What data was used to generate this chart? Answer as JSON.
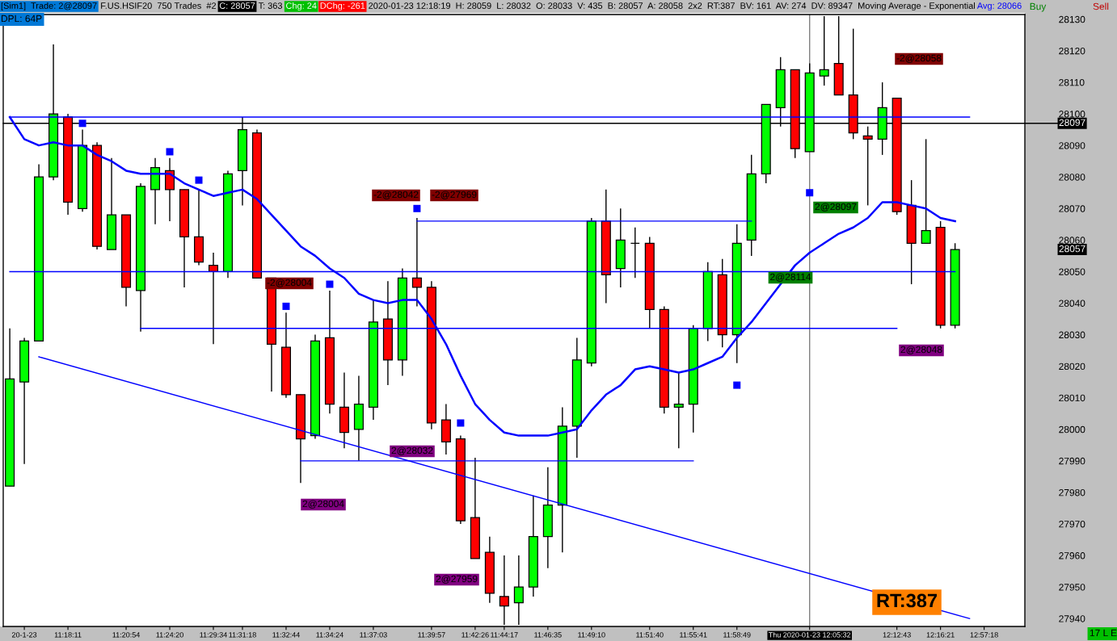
{
  "chart_data": {
    "type": "candlestick",
    "categories": [
      null,
      "20-1-23",
      null,
      null,
      "11:18:11",
      null,
      null,
      null,
      "11:20:54",
      null,
      null,
      "11:24:20",
      null,
      null,
      "11:29:34",
      null,
      "11:31:18",
      null,
      null,
      "11:32:44",
      null,
      null,
      "11:34:24",
      null,
      null,
      "11:37:03",
      null,
      null,
      null,
      "11:39:57",
      null,
      null,
      "11:42:26",
      null,
      "11:44:17",
      null,
      null,
      "11:46:35",
      null,
      null,
      "11:49:10",
      null,
      null,
      null,
      "11:51:40",
      null,
      null,
      "11:55:41",
      null,
      null,
      "11:58:49",
      null,
      null,
      null,
      null,
      "Thu 2020-01-23 12:05:32",
      null,
      null,
      null,
      null,
      null,
      "12:12:43",
      null,
      null,
      "12:16:21",
      null,
      null,
      "12:57:18",
      null,
      null
    ],
    "ohlc": [
      [
        27982,
        28032,
        27982,
        28016
      ],
      [
        28015,
        28029,
        27989,
        28028
      ],
      [
        28028,
        28084,
        28028,
        28080
      ],
      [
        28080,
        28122,
        28079,
        28100
      ],
      [
        28099,
        28100,
        28068,
        28072
      ],
      [
        28070,
        28095,
        28069,
        28090
      ],
      [
        28090,
        28091,
        28057,
        28058
      ],
      [
        28057,
        28086,
        28057,
        28068
      ],
      [
        28068,
        28068,
        28039,
        28045
      ],
      [
        28044,
        28078,
        28031,
        28077
      ],
      [
        28076,
        28086,
        28065,
        28083
      ],
      [
        28082,
        28086,
        28066,
        28076
      ],
      [
        28076,
        28076,
        28045,
        28061
      ],
      [
        28061,
        28076,
        28052,
        28053
      ],
      [
        28052,
        28056,
        28027,
        28050
      ],
      [
        28050,
        28082,
        28048,
        28081
      ],
      [
        28082,
        28099,
        28071,
        28095
      ],
      [
        28094,
        28095,
        28048,
        28048
      ],
      [
        28048,
        28048,
        28012,
        28027
      ],
      [
        28026,
        28037,
        28010,
        28011
      ],
      [
        28011,
        28011,
        27983,
        27997
      ],
      [
        27998,
        28030,
        27997,
        28028
      ],
      [
        28029,
        28044,
        28005,
        28008
      ],
      [
        28007,
        28018,
        27994,
        27999
      ],
      [
        28000,
        28017,
        27990,
        28008
      ],
      [
        28007,
        28041,
        28003,
        28034
      ],
      [
        28035,
        28047,
        28014,
        28022
      ],
      [
        28022,
        28051,
        28017,
        28048
      ],
      [
        28048,
        28067,
        28039,
        28045
      ],
      [
        28045,
        28047,
        28000,
        28002
      ],
      [
        28003,
        28008,
        27992,
        27996
      ],
      [
        27997,
        27998,
        27970,
        27971
      ],
      [
        27972,
        27991,
        27959,
        27959
      ],
      [
        27961,
        27966,
        27945,
        27948
      ],
      [
        27947,
        27960,
        27938,
        27944
      ],
      [
        27945,
        27960,
        27938,
        27950
      ],
      [
        27950,
        27979,
        27947,
        27966
      ],
      [
        27966,
        27988,
        27956,
        27976
      ],
      [
        27976,
        28007,
        27961,
        28001
      ],
      [
        28001,
        28029,
        27991,
        28022
      ],
      [
        28021,
        28067,
        28020,
        28066
      ],
      [
        28066,
        28076,
        28040,
        28049
      ],
      [
        28051,
        28070,
        28045,
        28060
      ],
      [
        28059,
        28064,
        28048,
        28059
      ],
      [
        28059,
        28061,
        28032,
        28038
      ],
      [
        28038,
        28039,
        28005,
        28007
      ],
      [
        28007,
        28018,
        27994,
        28008
      ],
      [
        28008,
        28033,
        27999,
        28032
      ],
      [
        28032,
        28053,
        28028,
        28050
      ],
      [
        28049,
        28054,
        28026,
        28030
      ],
      [
        28030,
        28065,
        28021,
        28059
      ],
      [
        28060,
        28087,
        28055,
        28081
      ],
      [
        28081,
        28103,
        28078,
        28103
      ],
      [
        28102,
        28118,
        28096,
        28114
      ],
      [
        28114,
        28114,
        28086,
        28089
      ],
      [
        28088,
        28116,
        28088,
        28113
      ],
      [
        28112,
        28131,
        28109,
        28114
      ],
      [
        28116,
        28131,
        28106,
        28106
      ],
      [
        28106,
        28127,
        28092,
        28094
      ],
      [
        28093,
        28096,
        28071,
        28092
      ],
      [
        28092,
        28110,
        28087,
        28102
      ],
      [
        28105,
        28105,
        28068,
        28069
      ],
      [
        28071,
        28079,
        28046,
        28059
      ],
      [
        28059,
        28092,
        28059,
        28063
      ],
      [
        28064,
        28066,
        28032,
        28033
      ],
      [
        28033,
        28059,
        28032,
        28057
      ],
      null,
      null,
      null,
      null
    ],
    "colors": [
      "#00ff00",
      "#00ff00",
      "#00ff00",
      "#00ff00",
      "#ff0000",
      "#00ff00",
      "#ff0000",
      "#00ff00",
      "#ff0000",
      "#00ff00",
      "#00ff00",
      "#ff0000",
      "#ff0000",
      "#ff0000",
      "#ff0000",
      "#00ff00",
      "#00ff00",
      "#ff0000",
      "#ff0000",
      "#ff0000",
      "#ff0000",
      "#00ff00",
      "#ff0000",
      "#ff0000",
      "#00ff00",
      "#00ff00",
      "#ff0000",
      "#00ff00",
      "#ff0000",
      "#ff0000",
      "#ff0000",
      "#ff0000",
      "#ff0000",
      "#ff0000",
      "#ff0000",
      "#00ff00",
      "#00ff00",
      "#00ff00",
      "#00ff00",
      "#00ff00",
      "#00ff00",
      "#ff0000",
      "#00ff00",
      "#000000",
      "#ff0000",
      "#ff0000",
      "#00ff00",
      "#00ff00",
      "#00ff00",
      "#ff0000",
      "#00ff00",
      "#00ff00",
      "#00ff00",
      "#00ff00",
      "#ff0000",
      "#00ff00",
      "#00ff00",
      "#ff0000",
      "#ff0000",
      "#ff0000",
      "#00ff00",
      "#ff0000",
      "#ff0000",
      "#00ff00",
      "#ff0000",
      "#00ff00",
      null,
      null,
      null,
      null
    ],
    "series": [
      {
        "type": "line",
        "color": "#0000ff",
        "values": [
          28099,
          28092,
          28090,
          28091,
          28090,
          28090,
          28087,
          28085,
          28082,
          28081,
          28081,
          28081,
          28078,
          28076,
          28074,
          28075,
          28076,
          28073,
          28068,
          28063,
          28058,
          28055,
          28051,
          28048,
          28043,
          28041,
          28040,
          28041,
          28041,
          28035,
          28027,
          28017,
          28008,
          28003,
          27999,
          27998,
          27998,
          27998,
          27999,
          28000,
          28006,
          28011,
          28014,
          28019,
          28020,
          28019,
          28018,
          28019,
          28021,
          28023,
          28029,
          28034,
          28040,
          28046,
          28052,
          28056,
          28059,
          28062,
          28064,
          28067,
          28072,
          28072,
          28071,
          28070,
          28067,
          28066,
          null,
          null,
          null,
          null
        ]
      },
      {
        "type": "scatter",
        "marker": "square",
        "color": "#0000ff",
        "values": [
          null,
          null,
          null,
          null,
          null,
          28097,
          null,
          null,
          null,
          null,
          null,
          28088,
          null,
          28079,
          null,
          null,
          null,
          null,
          null,
          28039,
          null,
          null,
          28046,
          null,
          null,
          null,
          null,
          null,
          28070,
          null,
          null,
          28002,
          null,
          null,
          null,
          null,
          null,
          null,
          null,
          null,
          null,
          null,
          null,
          null,
          null,
          null,
          null,
          null,
          null,
          null,
          28014,
          null,
          null,
          null,
          null,
          28075,
          null,
          null,
          null,
          null,
          null,
          null,
          null,
          null,
          null,
          null,
          null,
          null,
          null,
          null
        ]
      },
      {
        "type": "line",
        "color": "#0000ff",
        "values": [
          28099,
          null,
          null,
          null,
          null,
          null,
          null,
          null,
          null,
          null,
          null,
          null,
          null,
          null,
          null,
          null,
          null,
          null,
          null,
          null,
          null,
          null,
          null,
          null,
          null,
          null,
          null,
          null,
          null,
          null,
          null,
          null,
          null,
          null,
          null,
          null,
          null,
          null,
          null,
          null,
          null,
          null,
          null,
          null,
          null,
          null,
          null,
          null,
          null,
          null,
          null,
          null,
          null,
          null,
          null,
          null,
          null,
          null,
          null,
          null,
          null,
          null,
          null,
          null,
          null,
          null,
          28099,
          null,
          null,
          null
        ]
      },
      {
        "type": "line",
        "color": "#0000ff",
        "values": [
          28050,
          null,
          null,
          null,
          null,
          null,
          null,
          null,
          null,
          null,
          null,
          null,
          null,
          null,
          null,
          null,
          null,
          null,
          null,
          null,
          null,
          null,
          null,
          null,
          null,
          null,
          null,
          null,
          null,
          null,
          null,
          null,
          null,
          null,
          null,
          null,
          null,
          null,
          null,
          null,
          null,
          null,
          null,
          null,
          null,
          null,
          null,
          null,
          null,
          null,
          null,
          null,
          null,
          null,
          null,
          null,
          null,
          null,
          null,
          null,
          null,
          null,
          null,
          null,
          null,
          28050,
          null,
          null,
          null,
          null
        ]
      },
      {
        "type": "line",
        "color": "#0000ff",
        "values": [
          null,
          null,
          null,
          null,
          null,
          null,
          null,
          null,
          null,
          null,
          null,
          null,
          null,
          null,
          null,
          null,
          null,
          null,
          null,
          null,
          null,
          null,
          null,
          null,
          null,
          null,
          null,
          null,
          28066,
          null,
          null,
          null,
          null,
          null,
          null,
          null,
          null,
          null,
          null,
          null,
          null,
          null,
          null,
          null,
          null,
          null,
          null,
          null,
          null,
          null,
          null,
          28066,
          null,
          null,
          null,
          null,
          null,
          null,
          null,
          null,
          null,
          null,
          null,
          null,
          null,
          null,
          null,
          null,
          null,
          null
        ]
      },
      {
        "type": "line",
        "color": "#0000ff",
        "values": [
          null,
          null,
          null,
          null,
          null,
          null,
          null,
          null,
          null,
          28032,
          null,
          null,
          null,
          null,
          null,
          null,
          null,
          null,
          null,
          null,
          null,
          null,
          null,
          null,
          null,
          null,
          null,
          null,
          null,
          null,
          null,
          null,
          null,
          null,
          null,
          null,
          null,
          null,
          null,
          null,
          null,
          null,
          null,
          null,
          null,
          null,
          null,
          null,
          null,
          null,
          null,
          null,
          null,
          null,
          null,
          null,
          null,
          null,
          null,
          null,
          null,
          28032,
          null,
          null,
          null,
          null,
          null,
          null,
          null,
          null
        ]
      },
      {
        "type": "line",
        "color": "#0000ff",
        "values": [
          null,
          null,
          null,
          null,
          null,
          null,
          null,
          null,
          null,
          null,
          null,
          null,
          null,
          null,
          null,
          null,
          null,
          null,
          null,
          null,
          27990,
          null,
          null,
          null,
          null,
          null,
          null,
          null,
          null,
          null,
          null,
          null,
          null,
          null,
          null,
          null,
          null,
          null,
          null,
          null,
          null,
          null,
          null,
          null,
          null,
          null,
          null,
          27990,
          null,
          null,
          null,
          null,
          null,
          null,
          null,
          null,
          null,
          null,
          null,
          null,
          null,
          null,
          null,
          null,
          null,
          null,
          null,
          null,
          null,
          null
        ]
      },
      {
        "type": "line",
        "color": "#0000ff",
        "values": [
          null,
          null,
          28023,
          null,
          null,
          null,
          null,
          null,
          null,
          null,
          null,
          null,
          null,
          null,
          null,
          null,
          null,
          null,
          null,
          null,
          null,
          null,
          null,
          null,
          null,
          null,
          null,
          null,
          null,
          null,
          null,
          null,
          null,
          null,
          null,
          null,
          null,
          null,
          null,
          null,
          null,
          null,
          null,
          null,
          null,
          null,
          null,
          null,
          null,
          null,
          null,
          null,
          null,
          null,
          null,
          null,
          null,
          null,
          null,
          null,
          null,
          null,
          null,
          null,
          null,
          null,
          27940,
          null,
          null,
          null
        ]
      }
    ],
    "ylim": [
      27937.5,
      28131.5
    ],
    "yticks": [
      27940,
      27950,
      27960,
      27970,
      27980,
      27990,
      28000,
      28010,
      28020,
      28030,
      28040,
      28050,
      28060,
      28070,
      28080,
      28090,
      28100,
      28110,
      28120,
      28130
    ],
    "ref_lines": [
      {
        "axis": "y",
        "value": 28097,
        "label": "28097",
        "color": "#000000"
      },
      {
        "axis": "x",
        "value": "Thu 2020-01-23 12:05:32",
        "color": "#808080"
      }
    ],
    "annotations": [
      "[Sim1]  Trade: 2@28097",
      "F.US.HSIF20  750 Trades  #2",
      "C: 28057",
      "T: 363",
      "Chg: 24",
      "DChg: -261",
      "2020-01-23 12:18:19  H: 28059  L: 28032  O: 28033  V: 435  B: 28057  A: 28058  2x2  RT:387  BV: 161  AV: 274  DV: 89347  Moving Average - Exponential",
      "Avg: 28066",
      "DPL: 64P",
      "Buy",
      "Sell",
      "RT:387",
      "17 L E",
      "-2@28042",
      "-2@27969",
      "-2@28004",
      "2@28032",
      "2@28004",
      "2@27959",
      "2@28114",
      "2@28097",
      "-2@28058",
      "2@28048",
      "28057"
    ]
  }
}
